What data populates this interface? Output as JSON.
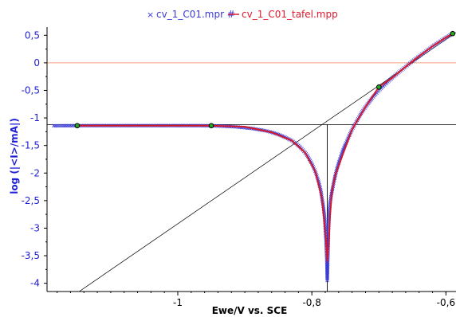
{
  "chart_data": {
    "type": "scatter",
    "title": "",
    "xlabel": "Ewe/V vs. SCE",
    "ylabel": "log (|<I>/mA|)",
    "xlim": [
      -1.195,
      -0.585
    ],
    "ylim": [
      -4.15,
      0.62
    ],
    "x_ticks": [
      -1,
      -0.8,
      -0.6
    ],
    "x_tick_labels": [
      "-1",
      "-0,8",
      "-0,6"
    ],
    "y_ticks": [
      0.5,
      0,
      -0.5,
      -1,
      -1.5,
      -2,
      -2.5,
      -3,
      -3.5,
      -4
    ],
    "y_tick_labels": [
      "0,5",
      "0",
      "-0,5",
      "-1",
      "-1,5",
      "-2",
      "-2,5",
      "-3",
      "-3,5",
      "-4"
    ],
    "legend": {
      "placement": "top-center",
      "entries": [
        {
          "label": "cv_1_C01.mpr #",
          "marker": "x",
          "color": "#3a3ad6"
        },
        {
          "label": "cv_1_C01_tafel.mpp",
          "marker": "line",
          "color": "#e0192d"
        }
      ]
    },
    "colors": {
      "measured": "#3a3ad6",
      "fit": "#d4182b",
      "axis_text": "#1f1fd6",
      "guide": "#000000",
      "zero_line": "#f4a27a",
      "point_fill": "#22aa22"
    },
    "series": [
      {
        "name": "cv_1_C01.mpr #",
        "style": "markers",
        "x": [
          -1.185,
          -1.17,
          -1.15,
          -1.13,
          -1.11,
          -1.09,
          -1.07,
          -1.05,
          -1.03,
          -1.01,
          -0.99,
          -0.97,
          -0.95,
          -0.93,
          -0.91,
          -0.89,
          -0.87,
          -0.86,
          -0.85,
          -0.84,
          -0.83,
          -0.82,
          -0.815,
          -0.81,
          -0.805,
          -0.8,
          -0.795,
          -0.79,
          -0.787,
          -0.785,
          -0.783,
          -0.781,
          -0.78,
          -0.779,
          -0.778,
          -0.777,
          -0.776,
          -0.775,
          -0.774,
          -0.773,
          -0.771,
          -0.769,
          -0.767,
          -0.765,
          -0.762,
          -0.758,
          -0.754,
          -0.75,
          -0.745,
          -0.74,
          -0.735,
          -0.73,
          -0.725,
          -0.72,
          -0.715,
          -0.71,
          -0.7,
          -0.69,
          -0.68,
          -0.67,
          -0.66,
          -0.65,
          -0.64,
          -0.63,
          -0.62,
          -0.61,
          -0.6,
          -0.59
        ],
        "y": [
          -1.143,
          -1.141,
          -1.14,
          -1.14,
          -1.14,
          -1.14,
          -1.14,
          -1.14,
          -1.14,
          -1.14,
          -1.14,
          -1.14,
          -1.142,
          -1.15,
          -1.165,
          -1.19,
          -1.23,
          -1.26,
          -1.3,
          -1.35,
          -1.41,
          -1.5,
          -1.56,
          -1.63,
          -1.72,
          -1.83,
          -1.97,
          -2.15,
          -2.3,
          -2.45,
          -2.6,
          -2.8,
          -3.0,
          -3.2,
          -3.5,
          -3.95,
          -3.5,
          -3.0,
          -2.7,
          -2.55,
          -2.4,
          -2.27,
          -2.15,
          -2.04,
          -1.9,
          -1.74,
          -1.6,
          -1.48,
          -1.34,
          -1.21,
          -1.1,
          -0.99,
          -0.89,
          -0.8,
          -0.72,
          -0.64,
          -0.5,
          -0.38,
          -0.27,
          -0.17,
          -0.07,
          0.03,
          0.12,
          0.21,
          0.3,
          0.38,
          0.46,
          0.53
        ]
      },
      {
        "name": "cv_1_C01_tafel.mpp",
        "style": "line",
        "x": [
          -1.15,
          -1.1,
          -1.05,
          -1.0,
          -0.95,
          -0.9,
          -0.86,
          -0.83,
          -0.81,
          -0.795,
          -0.785,
          -0.779,
          -0.777,
          -0.775,
          -0.773,
          -0.77,
          -0.765,
          -0.755,
          -0.74,
          -0.72,
          -0.7,
          -0.68,
          -0.66,
          -0.64,
          -0.62,
          -0.6,
          -0.59
        ],
        "y": [
          -1.14,
          -1.14,
          -1.14,
          -1.14,
          -1.141,
          -1.16,
          -1.26,
          -1.41,
          -1.63,
          -1.97,
          -2.45,
          -3.2,
          -3.6,
          -3.3,
          -2.8,
          -2.33,
          -2.04,
          -1.7,
          -1.21,
          -0.8,
          -0.44,
          -0.27,
          -0.07,
          0.12,
          0.3,
          0.46,
          0.53
        ]
      }
    ],
    "tafel_lines": [
      {
        "x": [
          -1.195,
          -0.585
        ],
        "y": [
          -1.12,
          -1.12
        ]
      },
      {
        "x": [
          -1.165,
          -0.585
        ],
        "y": [
          -4.3,
          0.55
        ]
      }
    ],
    "zero_line_y": 0,
    "corrosion_marker": {
      "x": -0.777,
      "y_from": -1.12,
      "y_to": -4.15
    },
    "fit_endpoints": [
      {
        "x": -1.15,
        "y": -1.14
      },
      {
        "x": -0.95,
        "y": -1.14
      },
      {
        "x": -0.7,
        "y": -0.44
      },
      {
        "x": -0.59,
        "y": 0.53
      }
    ],
    "grid": false
  }
}
